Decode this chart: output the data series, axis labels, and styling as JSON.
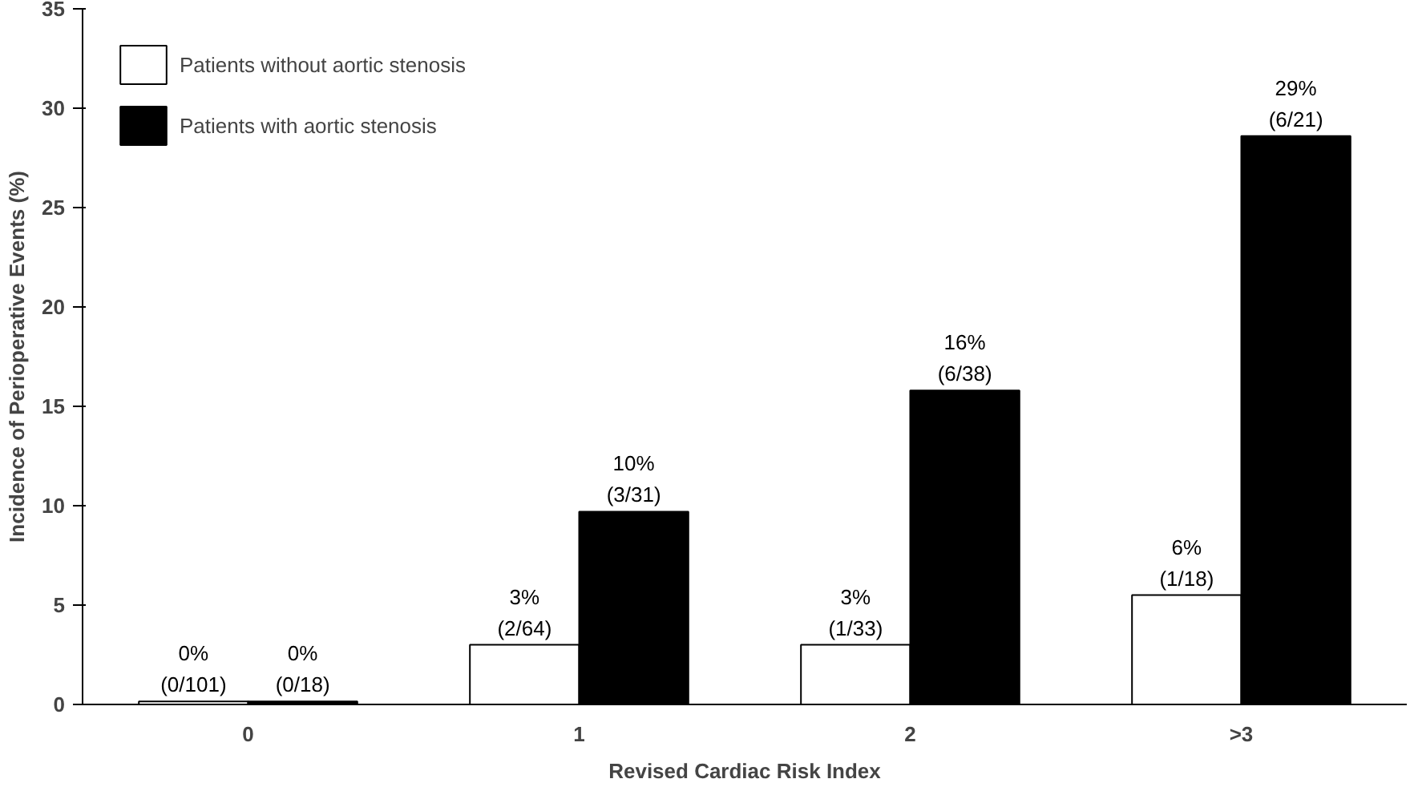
{
  "chart_data": {
    "type": "bar",
    "xlabel": "Revised Cardiac Risk Index",
    "ylabel": "Incidence of Perioperative Events (%)",
    "categories": [
      "0",
      "1",
      "2",
      ">3"
    ],
    "series": [
      {
        "name": "Patients without aortic stenosis",
        "color": "#ffffff",
        "values": [
          0.15,
          3,
          3,
          5.5
        ],
        "value_labels": [
          "0%\n(0/101)",
          "3%\n(2/64)",
          "3%\n(1/33)",
          "6%\n(1/18)"
        ]
      },
      {
        "name": "Patients with aortic stenosis",
        "color": "#000000",
        "values": [
          0.15,
          9.7,
          15.8,
          28.6
        ],
        "value_labels": [
          "0%\n(0/18)",
          "10%\n(3/31)",
          "16%\n(6/38)",
          "29%\n(6/21)"
        ]
      }
    ],
    "ylim": [
      0,
      35
    ],
    "yticks": [
      0,
      5,
      10,
      15,
      20,
      25,
      30,
      35
    ],
    "grid": false,
    "legend": "top left"
  }
}
